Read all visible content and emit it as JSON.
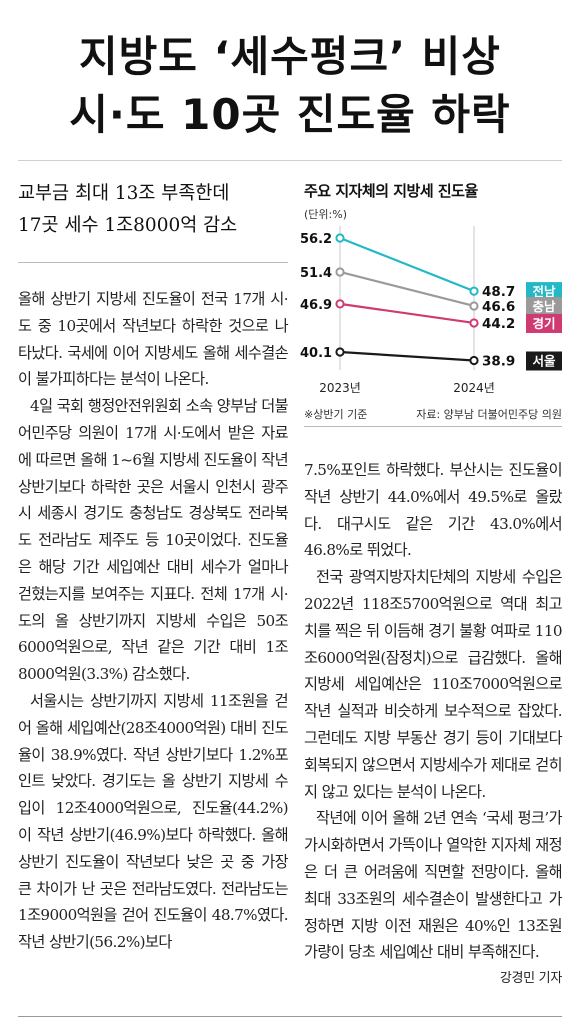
{
  "headline": {
    "line1": "지방도 ‘세수펑크’ 비상",
    "line2": "시·도 10곳 진도율 하락"
  },
  "subhead": {
    "line1": "교부금 최대 13조 부족한데",
    "line2": "17곳 세수 1조8000억 감소"
  },
  "body": {
    "left": [
      "올해 상반기 지방세 진도율이 전국 17개 시·도 중 10곳에서 작년보다 하락한 것으로 나타났다. 국세에 이어 지방세도 올해 세수결손이 불가피하다는 분석이 나온다.",
      "4일 국회 행정안전위원회 소속 양부남 더불어민주당 의원이 17개 시·도에서 받은 자료에 따르면 올해 1~6월 지방세 진도율이 작년 상반기보다 하락한 곳은 서울시 인천시 광주시 세종시 경기도 충청남도 경상북도 전라북도 전라남도 제주도 등 10곳이었다. 진도율은 해당 기간 세입예산 대비 세수가 얼마나 걷혔는지를 보여주는 지표다. 전체 17개 시·도의 올 상반기까지 지방세 수입은 50조6000억원으로, 작년 같은 기간 대비 1조8000억원(3.3%) 감소했다.",
      "서울시는 상반기까지 지방세 11조원을 걷어 올해 세입예산(28조4000억원) 대비 진도율이 38.9%였다. 작년 상반기보다 1.2%포인트 낮았다. 경기도는 올 상반기 지방세 수입이 12조4000억원으로, 진도율(44.2%)이 작년 상반기(46.9%)보다 하락했다. 올해 상반기 진도율이 작년보다 낮은 곳 중 가장 큰 차이가 난 곳은 전라남도였다. 전라남도는 1조9000억원을 걷어 진도율이 48.7%였다. 작년 상반기(56.2%)보다"
    ],
    "right": [
      "7.5%포인트 하락했다. 부산시는 진도율이 작년 상반기 44.0%에서 49.5%로 올랐다. 대구시도 같은 기간 43.0%에서 46.8%로 뛰었다.",
      "전국 광역지방자치단체의 지방세 수입은 2022년 118조5700억원으로 역대 최고치를 찍은 뒤 이듬해 경기 불황 여파로 110조6000억원(잠정치)으로 급감했다. 올해 지방세 세입예산은 110조7000억원으로 작년 실적과 비슷하게 보수적으로 잡았다. 그런데도 지방 부동산 경기 등이 기대보다 회복되지 않으면서 지방세수가 제대로 걷히지 않고 있다는 분석이 나온다.",
      "작년에 이어 올해 2년 연속 ‘국세 펑크’가 가시화하면서 가뜩이나 열악한 지자체 재정은 더 큰 어려움에 직면할 전망이다. 올해 최대 33조원의 세수결손이 발생한다고 가정하면 지방 이전 재원은 40%인 13조원가량이 당초 세입예산 대비 부족해진다."
    ],
    "byline": "강경민 기자"
  },
  "chart": {
    "title": "주요 지자체의 지방세 진도율",
    "unit": "(단위:%)",
    "note": "※상반기 기준",
    "source": "자료: 양부남 더불어민주당 의원"
  },
  "chart_data": {
    "type": "line",
    "title": "주요 지자체의 지방세 진도율",
    "unit": "(단위:%)",
    "x": [
      "2023년",
      "2024년"
    ],
    "series": [
      {
        "name": "전남",
        "values": [
          56.2,
          48.7
        ],
        "color": "#22b8c8"
      },
      {
        "name": "충남",
        "values": [
          51.4,
          46.6
        ],
        "color": "#9a9a9a"
      },
      {
        "name": "경기",
        "values": [
          46.9,
          44.2
        ],
        "color": "#d03a72"
      },
      {
        "name": "서울",
        "values": [
          40.1,
          38.9
        ],
        "color": "#1a1a1a"
      }
    ],
    "ylim": [
      38,
      58
    ],
    "grid": "vertical"
  }
}
